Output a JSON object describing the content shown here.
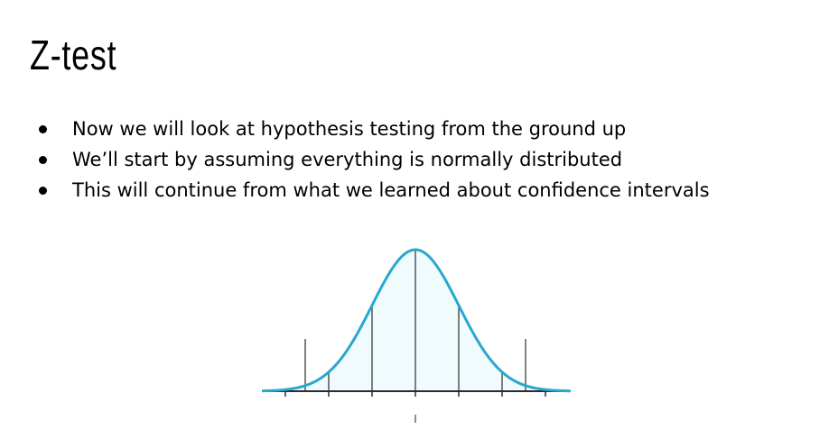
{
  "slide": {
    "title": "Z-test",
    "bullets": [
      "Now we will look at hypothesis testing from the ground up",
      "We’ll start by assuming everything is normally distributed",
      "This will continue from what we learned about confidence intervals"
    ]
  },
  "figure": {
    "description_icon": "normal-distribution-curve",
    "curve_color": "#2aa7cf",
    "fill_color": "#effbfd",
    "line_color": "#555555"
  }
}
